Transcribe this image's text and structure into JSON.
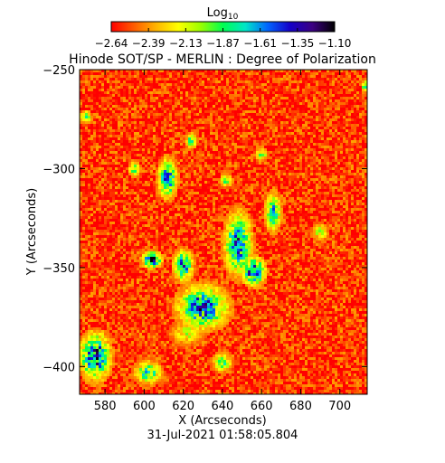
{
  "chart_data": {
    "type": "heatmap",
    "title": "Hinode SOT/SP - MERLIN : Degree of Polarization",
    "subtitle": "31-Jul-2021 01:58:05.804",
    "xlabel": "X (Arcseconds)",
    "ylabel": "Y (Arcseconds)",
    "xlim": [
      567,
      714
    ],
    "ylim": [
      -414,
      -250
    ],
    "x_ticks": [
      "580",
      "600",
      "620",
      "640",
      "660",
      "680",
      "700"
    ],
    "y_ticks": [
      "-250",
      "-300",
      "-350",
      "-400"
    ],
    "y_tick_values": [
      -250,
      -300,
      -350,
      -400
    ],
    "x_tick_values": [
      580,
      600,
      620,
      640,
      660,
      680,
      700
    ],
    "colorbar": {
      "label_base": "Log",
      "label_sub": "10",
      "ticks": [
        "-2.64",
        "-2.39",
        "-2.13",
        "-1.87",
        "-1.61",
        "-1.35",
        "-1.10"
      ],
      "min": -2.64,
      "max": -1.1,
      "colormap": [
        "#ff0000",
        "#ff5a00",
        "#ffb400",
        "#ffff00",
        "#9bff00",
        "#00ff50",
        "#00e6c8",
        "#0064ff",
        "#1400c8",
        "#3c0082",
        "#000000"
      ]
    },
    "background_level": -2.55,
    "active_regions": [
      {
        "x": 630,
        "y": -370,
        "rx": 13,
        "ry": 11,
        "level": -1.5
      },
      {
        "x": 622,
        "y": -383,
        "rx": 8,
        "ry": 6,
        "level": -2.1
      },
      {
        "x": 575,
        "y": -395,
        "rx": 8,
        "ry": 12,
        "level": -1.45
      },
      {
        "x": 648,
        "y": -338,
        "rx": 7,
        "ry": 16,
        "level": -1.55
      },
      {
        "x": 656,
        "y": -352,
        "rx": 6,
        "ry": 7,
        "level": -1.4
      },
      {
        "x": 612,
        "y": -305,
        "rx": 5,
        "ry": 10,
        "level": -1.6
      },
      {
        "x": 620,
        "y": -349,
        "rx": 5,
        "ry": 8,
        "level": -1.6
      },
      {
        "x": 604,
        "y": -346,
        "rx": 5,
        "ry": 4,
        "level": -1.3
      },
      {
        "x": 666,
        "y": -322,
        "rx": 4,
        "ry": 10,
        "level": -1.7
      },
      {
        "x": 602,
        "y": -403,
        "rx": 7,
        "ry": 6,
        "level": -1.8
      },
      {
        "x": 640,
        "y": -398,
        "rx": 5,
        "ry": 5,
        "level": -1.9
      },
      {
        "x": 624,
        "y": -286,
        "rx": 3,
        "ry": 4,
        "level": -1.9
      },
      {
        "x": 570,
        "y": -274,
        "rx": 3,
        "ry": 3,
        "level": -1.7
      },
      {
        "x": 713,
        "y": -258,
        "rx": 2,
        "ry": 3,
        "level": -1.8
      },
      {
        "x": 642,
        "y": -306,
        "rx": 3,
        "ry": 3,
        "level": -1.8
      },
      {
        "x": 660,
        "y": -293,
        "rx": 3,
        "ry": 3,
        "level": -1.9
      },
      {
        "x": 595,
        "y": -300,
        "rx": 3,
        "ry": 4,
        "level": -1.9
      },
      {
        "x": 690,
        "y": -332,
        "rx": 4,
        "ry": 4,
        "level": -2.0
      }
    ]
  }
}
